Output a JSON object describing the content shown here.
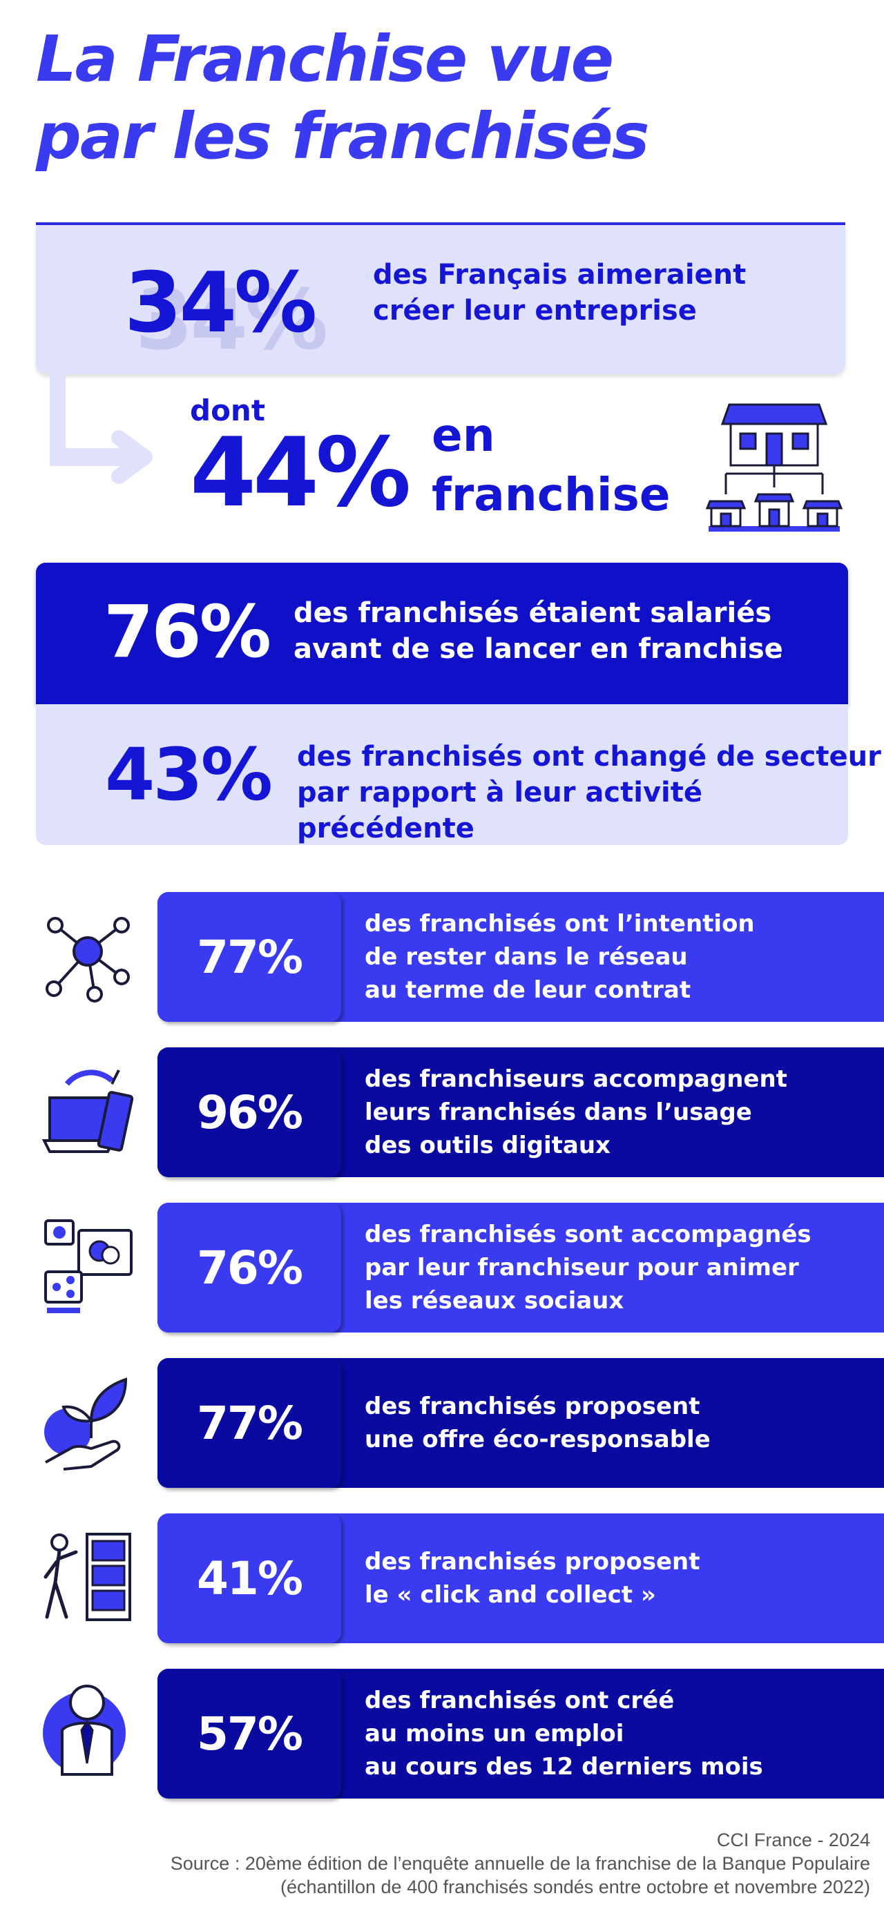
{
  "title_line1": "La Franchise vue",
  "title_line2": "par les franchisés",
  "stat34": {
    "value": "34%",
    "text1": "des Français aimeraient",
    "text2": "créer leur entreprise"
  },
  "stat44": {
    "prefix": "dont",
    "value": "44%",
    "text1": "en",
    "text2": "franchise"
  },
  "stat76a": {
    "value": "76%",
    "text1": "des franchisés étaient salariés",
    "text2": "avant de se lancer en franchise"
  },
  "stat43": {
    "value": "43%",
    "text1": "des franchisés ont changé de secteur",
    "text2": "par rapport à leur activité précédente"
  },
  "rows": [
    {
      "icon": "network-icon",
      "value": "77%",
      "lines": [
        "des franchisés ont l’intention",
        "de rester dans le réseau",
        "au terme de leur contrat"
      ]
    },
    {
      "icon": "devices-icon",
      "value": "96%",
      "lines": [
        "des franchiseurs accompagnent",
        "leurs franchisés dans l’usage",
        "des outils digitaux"
      ]
    },
    {
      "icon": "social-media-icon",
      "value": "76%",
      "lines": [
        "des franchisés sont accompagnés",
        "par leur franchiseur pour animer",
        "les réseaux sociaux"
      ]
    },
    {
      "icon": "eco-leaf-hand-icon",
      "value": "77%",
      "lines": [
        "des franchisés proposent",
        "une offre éco-responsable"
      ]
    },
    {
      "icon": "click-collect-icon",
      "value": "41%",
      "lines": [
        "des franchisés proposent",
        "le « click and collect »"
      ]
    },
    {
      "icon": "employee-icon",
      "value": "57%",
      "lines": [
        "des franchisés ont créé",
        "au moins un emploi",
        "au cours des 12 derniers mois"
      ]
    }
  ],
  "source": {
    "line1": "CCI France - 2024",
    "line2": "Source : 20ème édition de l’enquête annuelle de la franchise de la Banque Populaire",
    "line3": "(échantillon de 400 franchisés sondés entre octobre et novembre 2022)"
  },
  "colors": {
    "primary": "#1515d6",
    "light": "#3a3af0",
    "dark": "#0a0aa0",
    "pale": "#e0e1fa"
  }
}
